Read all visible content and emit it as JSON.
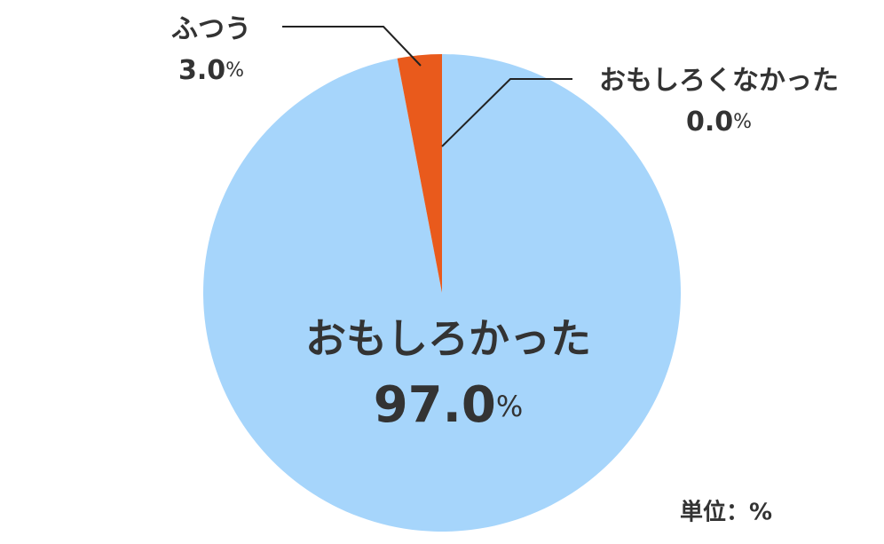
{
  "chart_data": {
    "type": "pie",
    "categories": [
      "おもしろかった",
      "ふつう",
      "おもしろくなかった"
    ],
    "values": [
      97.0,
      3.0,
      0.0
    ],
    "value_labels": [
      "97.0",
      "3.0",
      "0.0"
    ],
    "unit": "%",
    "colors": [
      "#a6d5fb",
      "#e95a1c",
      "#e95a1c"
    ],
    "unit_note": "単位：%"
  }
}
